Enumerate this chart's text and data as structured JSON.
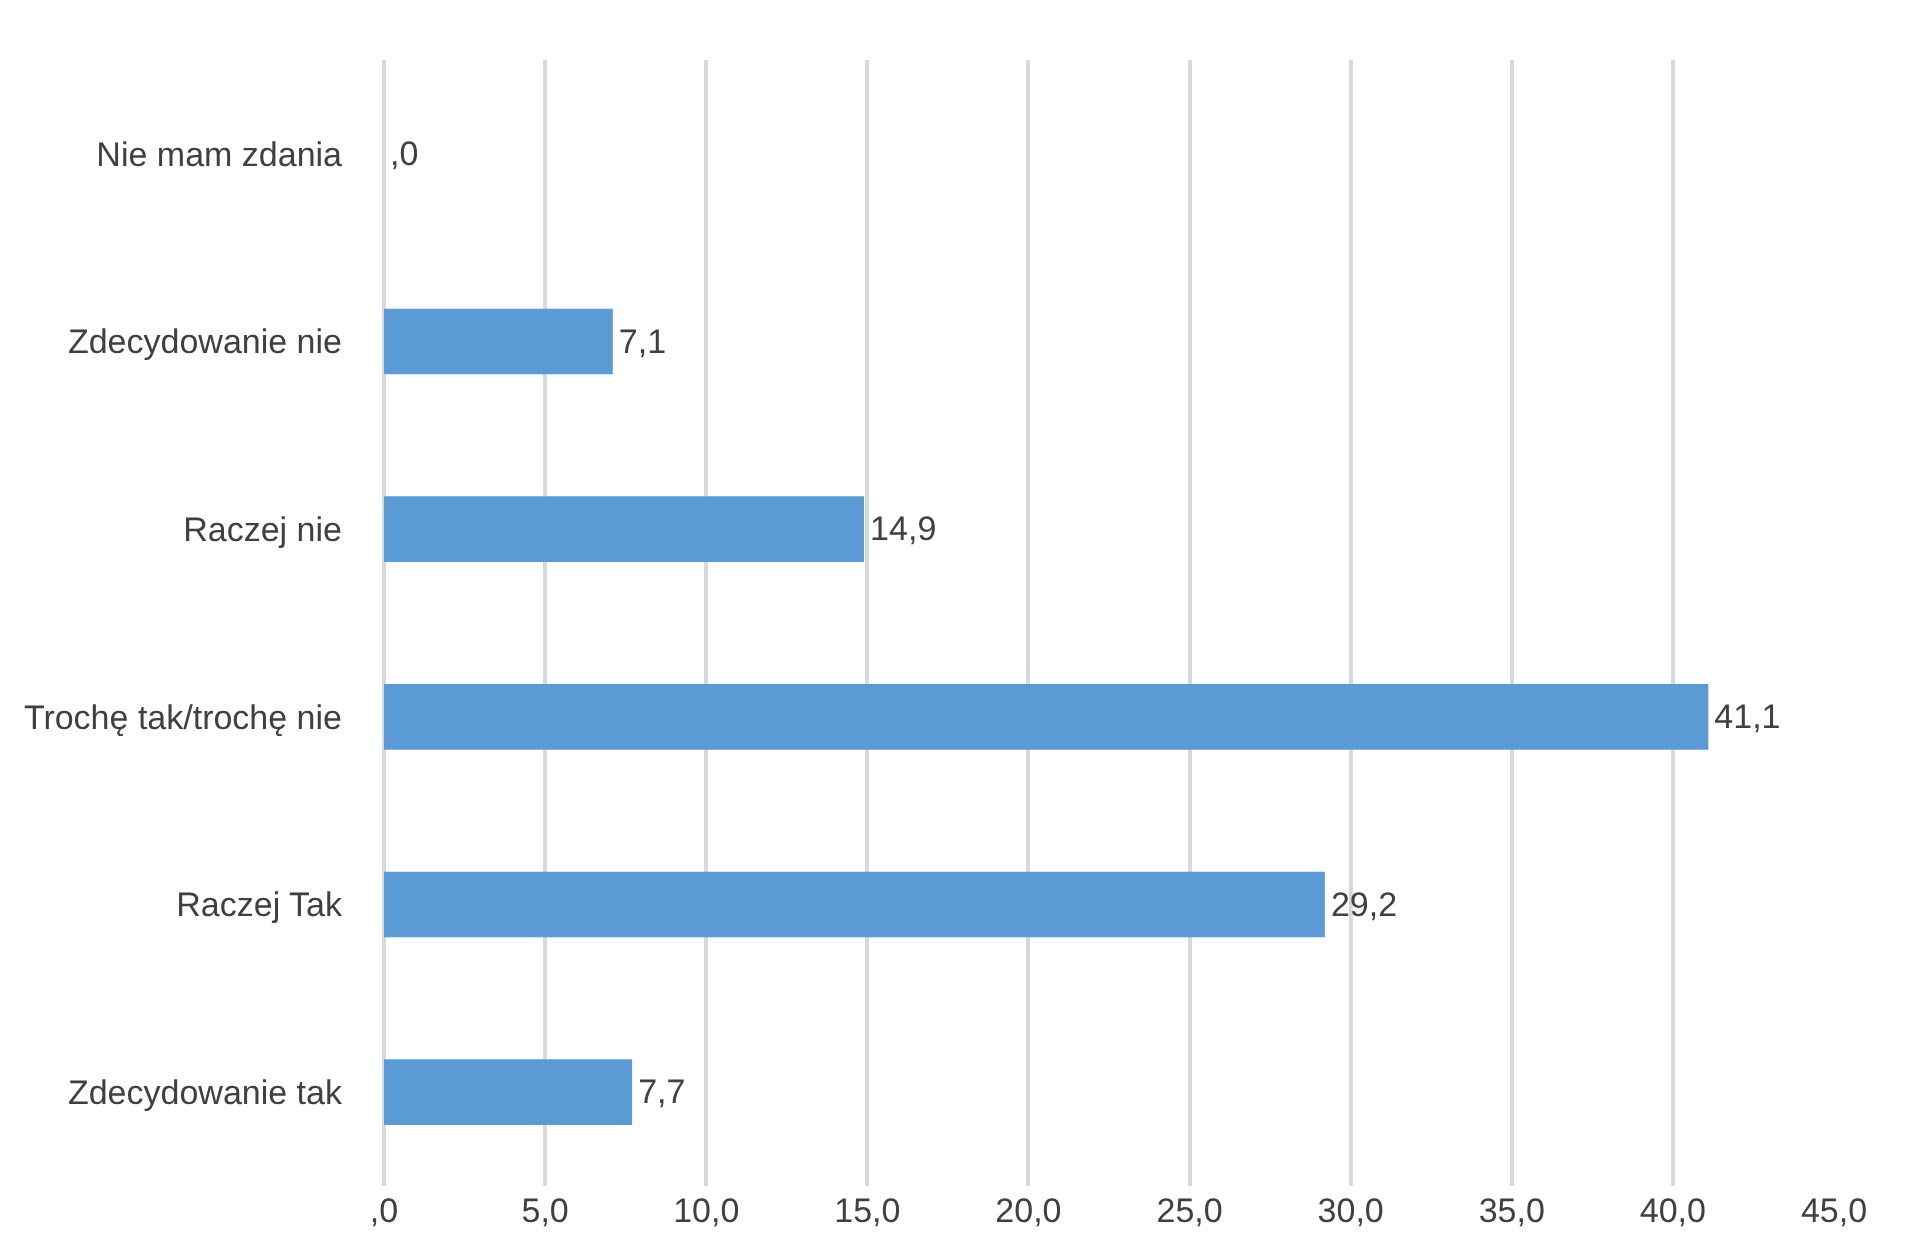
{
  "chart_data": {
    "type": "bar",
    "orientation": "horizontal",
    "categories": [
      "Nie mam zdania",
      "Zdecydowanie nie",
      "Raczej nie",
      "Trochę tak/trochę nie",
      "Raczej Tak",
      "Zdecydowanie tak"
    ],
    "values": [
      0,
      7.1,
      14.9,
      41.1,
      29.2,
      7.7
    ],
    "value_labels": [
      ",0",
      "7,1",
      "14,9",
      "41,1",
      "29,2",
      "7,7"
    ],
    "color": "#5b9bd5",
    "xlim": [
      0,
      45
    ],
    "xticks": [
      {
        "value": 0,
        "label": ",0"
      },
      {
        "value": 5,
        "label": "5,0"
      },
      {
        "value": 10,
        "label": "10,0"
      },
      {
        "value": 15,
        "label": "15,0"
      },
      {
        "value": 20,
        "label": "20,0"
      },
      {
        "value": 25,
        "label": "25,0"
      },
      {
        "value": 30,
        "label": "30,0"
      },
      {
        "value": 35,
        "label": "35,0"
      },
      {
        "value": 40,
        "label": "40,0"
      },
      {
        "value": 45,
        "label": "45,0"
      }
    ],
    "grid": "x",
    "legend": false
  }
}
